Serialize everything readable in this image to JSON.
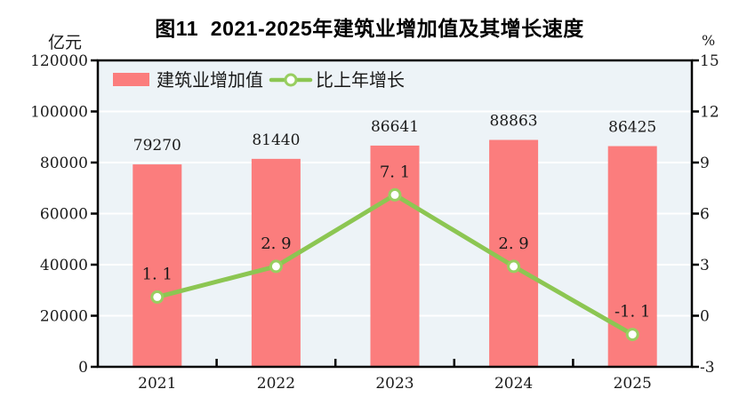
{
  "header": {
    "title": "图11  2021-2025年建筑业增加值及其增长速度"
  },
  "chart_data": {
    "type": "bar+line",
    "title": "图11  2021-2025年建筑业增加值及其增长速度",
    "categories": [
      "2021",
      "2022",
      "2023",
      "2024",
      "2025"
    ],
    "series": [
      {
        "name": "建筑业增加值",
        "type": "bar",
        "axis": "left",
        "values": [
          79270,
          81440,
          86641,
          88863,
          86425
        ],
        "labels": [
          "79270",
          "81440",
          "86641",
          "88863",
          "86425"
        ],
        "color": "#FB7D7D"
      },
      {
        "name": "比上年增长",
        "type": "line",
        "axis": "right",
        "values": [
          1.1,
          2.9,
          7.1,
          2.9,
          -1.1
        ],
        "labels": [
          "1. 1",
          "2. 9",
          "7. 1",
          "2. 9",
          "-1. 1"
        ],
        "color": "#8CC652",
        "marker_fill": "#FFFFFF",
        "marker_stroke": "#98CE60"
      }
    ],
    "left_axis": {
      "unit": "亿元",
      "min": 0,
      "max": 120000,
      "step": 20000,
      "tick_labels": [
        "0",
        "20000",
        "40000",
        "60000",
        "80000",
        "100000",
        "120000"
      ]
    },
    "right_axis": {
      "unit": "%",
      "min": -3,
      "max": 15,
      "step": 3,
      "tick_labels": [
        "-3",
        "0",
        "3",
        "6",
        "9",
        "12",
        "15"
      ]
    },
    "legend": {
      "position": "top-inside",
      "items": [
        "建筑业增加值",
        "比上年增长"
      ]
    },
    "plot": {
      "background": "#EDF3F7",
      "gridline_color": "#FFFFFF",
      "frame_color": "#000000",
      "text_color": "#1A1A1A",
      "grid": true
    }
  }
}
